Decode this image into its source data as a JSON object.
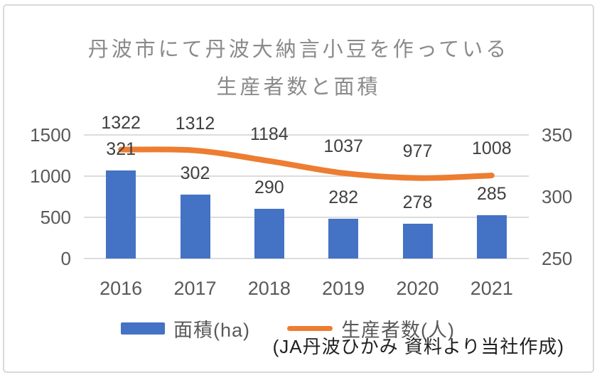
{
  "page": {
    "title_line1": "丹波市にて丹波大納言小豆を作っている",
    "title_line2": "生産者数と面積",
    "source_note": "(JA丹波ひかみ 資料より当社作成)"
  },
  "colors": {
    "bar": "#4472C4",
    "line": "#ED7D31",
    "gridline": "#dcdcdc",
    "axis_text": "#595959",
    "data_label": "#404040",
    "title_text": "#8a8a8a"
  },
  "chart_data": {
    "type": "combo",
    "title": "丹波市にて丹波大納言小豆を作っている生産者数と面積",
    "categories": [
      "2016",
      "2017",
      "2018",
      "2019",
      "2020",
      "2021"
    ],
    "series": [
      {
        "name": "面積(ha)",
        "type": "bar",
        "axis": "right",
        "color": "#4472C4",
        "values": [
          321,
          302,
          290,
          282,
          278,
          285
        ]
      },
      {
        "name": "生産者数(人)",
        "type": "line",
        "axis": "left",
        "color": "#ED7D31",
        "values": [
          1322,
          1312,
          1184,
          1037,
          977,
          1008
        ]
      }
    ],
    "left_axis": {
      "min": 0,
      "max": 1500,
      "ticks": [
        1500,
        1000,
        500,
        0
      ]
    },
    "right_axis": {
      "min": 250,
      "max": 350,
      "ticks": [
        350,
        300,
        250
      ]
    },
    "grid": true,
    "legend_position": "bottom",
    "source_note": "(JA丹波ひかみ 資料より当社作成)"
  }
}
